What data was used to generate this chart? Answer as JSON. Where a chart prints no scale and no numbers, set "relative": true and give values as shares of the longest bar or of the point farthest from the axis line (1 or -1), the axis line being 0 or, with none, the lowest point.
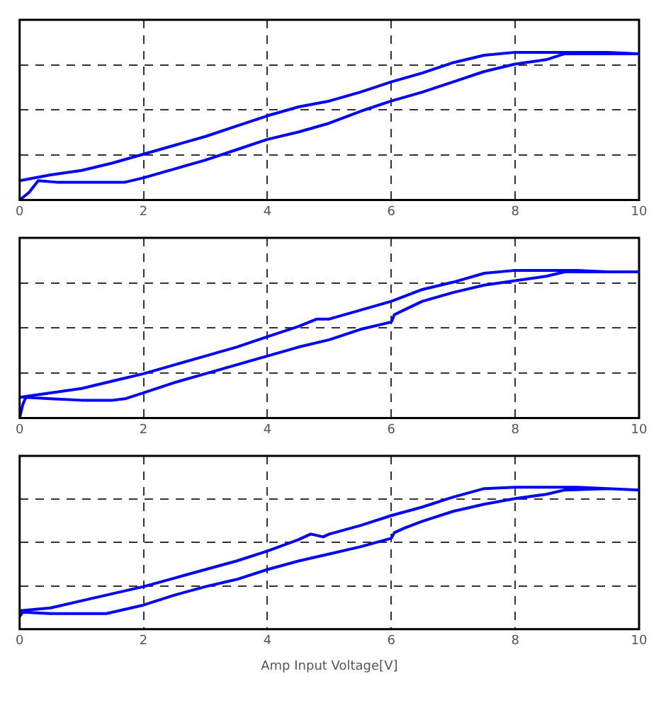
{
  "chart_data": [
    {
      "type": "line",
      "relative": true,
      "xlim": [
        0,
        10
      ],
      "xticks": [
        0,
        2,
        4,
        6,
        8,
        10
      ],
      "grid": true,
      "marker": "none",
      "line_style": "solid",
      "series": [
        {
          "color": "#0000ff",
          "x": [
            0,
            0.15,
            0.3,
            0.6,
            1,
            1.5,
            1.7,
            2,
            2.5,
            3,
            3.5,
            4,
            4.5,
            5,
            5.5,
            6,
            6.5,
            7,
            7.5,
            8,
            8.5,
            8.8,
            9.5,
            10,
            9.5,
            9,
            8.5,
            8,
            7.5,
            7,
            6.5,
            6,
            5.5,
            5,
            4.5,
            4,
            3.5,
            3,
            2.5,
            2,
            1.5,
            1,
            0.5,
            0
          ],
          "values": [
            0,
            0.05,
            0.13,
            0.12,
            0.12,
            0.12,
            0.12,
            0.15,
            0.21,
            0.27,
            0.34,
            0.41,
            0.46,
            0.52,
            0.6,
            0.67,
            0.73,
            0.8,
            0.87,
            0.92,
            0.95,
            0.99,
            0.99,
            0.99,
            1.0,
            1.0,
            1.0,
            1.0,
            0.98,
            0.93,
            0.86,
            0.8,
            0.73,
            0.67,
            0.63,
            0.57,
            0.5,
            0.43,
            0.37,
            0.31,
            0.25,
            0.2,
            0.17,
            0.13
          ]
        }
      ]
    },
    {
      "type": "line",
      "relative": true,
      "xlim": [
        0,
        10
      ],
      "xticks": [
        0,
        2,
        4,
        6,
        8,
        10
      ],
      "grid": true,
      "marker": "none",
      "line_style": "solid",
      "series": [
        {
          "color": "#0000ff",
          "x": [
            0,
            0.05,
            0.1,
            0.5,
            1,
            1.5,
            1.7,
            2,
            2.5,
            3,
            3.5,
            4,
            4.5,
            5,
            5.5,
            6,
            6.05,
            6.2,
            6.5,
            7,
            7.5,
            8,
            8.5,
            8.8,
            9.5,
            10,
            9.5,
            9,
            8.5,
            8,
            7.5,
            7,
            6.5,
            6,
            5.5,
            5,
            4.8,
            4.5,
            4,
            3.5,
            3,
            2.5,
            2,
            1.5,
            1,
            0.5,
            0
          ],
          "values": [
            0,
            0.09,
            0.14,
            0.13,
            0.12,
            0.12,
            0.13,
            0.17,
            0.24,
            0.3,
            0.36,
            0.42,
            0.48,
            0.53,
            0.6,
            0.65,
            0.7,
            0.73,
            0.79,
            0.85,
            0.9,
            0.93,
            0.96,
            0.99,
            0.99,
            0.99,
            0.99,
            1.0,
            1.0,
            1.0,
            0.98,
            0.92,
            0.87,
            0.79,
            0.73,
            0.67,
            0.67,
            0.62,
            0.55,
            0.48,
            0.42,
            0.36,
            0.3,
            0.25,
            0.2,
            0.17,
            0.14
          ]
        }
      ]
    },
    {
      "type": "line",
      "relative": true,
      "xlim": [
        0,
        10
      ],
      "xticks": [
        0,
        2,
        4,
        6,
        8,
        10
      ],
      "grid": true,
      "marker": "none",
      "line_style": "solid",
      "xlabel": "Amp Input Voltage[V]",
      "series": [
        {
          "color": "#0000ff",
          "x": [
            0,
            0.05,
            0.5,
            1,
            1.4,
            1.7,
            2,
            2.5,
            3,
            3.5,
            4,
            4.5,
            5,
            5.5,
            6,
            6.05,
            6.2,
            6.5,
            7,
            7.5,
            8,
            8.5,
            8.8,
            9.5,
            10,
            9.5,
            9,
            8.5,
            8,
            7.5,
            7,
            6.5,
            6,
            5.5,
            5,
            4.9,
            4.7,
            4.5,
            4,
            3.5,
            3,
            2.5,
            2,
            1.5,
            1,
            0.5,
            0
          ],
          "values": [
            0.09,
            0.12,
            0.11,
            0.11,
            0.11,
            0.14,
            0.17,
            0.24,
            0.3,
            0.35,
            0.42,
            0.48,
            0.53,
            0.58,
            0.64,
            0.68,
            0.71,
            0.76,
            0.83,
            0.88,
            0.92,
            0.95,
            0.98,
            0.99,
            0.98,
            0.99,
            1.0,
            1.0,
            1.0,
            0.99,
            0.93,
            0.86,
            0.8,
            0.73,
            0.67,
            0.65,
            0.67,
            0.63,
            0.55,
            0.48,
            0.42,
            0.36,
            0.3,
            0.25,
            0.2,
            0.15,
            0.13
          ]
        }
      ]
    }
  ]
}
